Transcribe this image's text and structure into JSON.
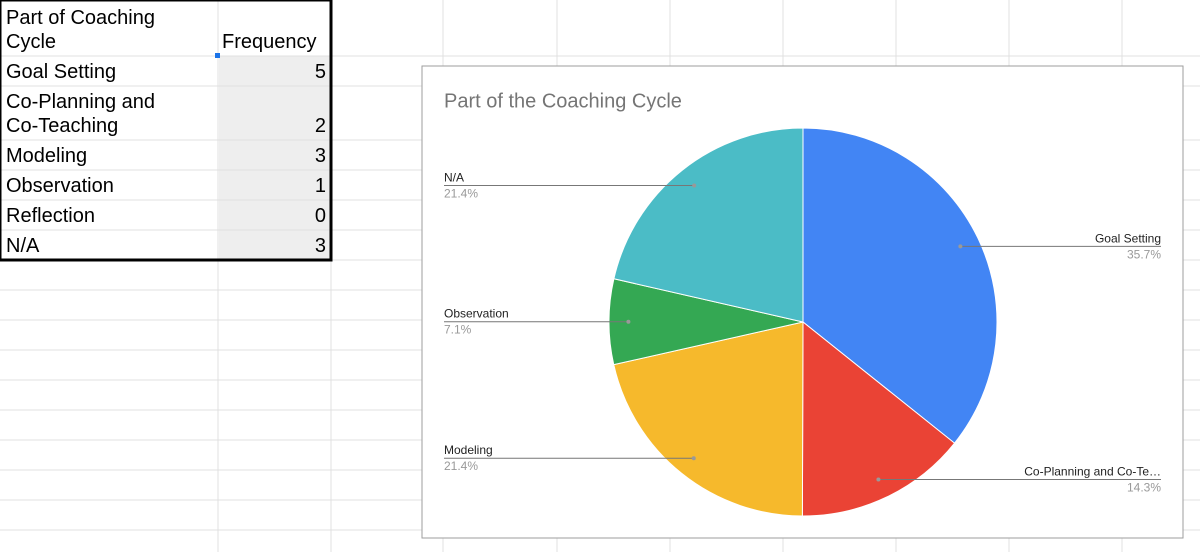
{
  "table": {
    "header": [
      "Part of Coaching Cycle",
      "Frequency"
    ],
    "rows": [
      [
        "Goal Setting",
        5
      ],
      [
        "Co-Planning and Co-Teaching",
        2
      ],
      [
        "Modeling",
        3
      ],
      [
        "Observation",
        1
      ],
      [
        "Reflection",
        0
      ],
      [
        "N/A",
        3
      ]
    ]
  },
  "chart_data": {
    "type": "pie",
    "title": "Part of the Coaching Cycle",
    "categories": [
      "Goal Setting",
      "Co-Planning and Co-Te…",
      "Modeling",
      "Observation",
      "N/A"
    ],
    "values": [
      35.7,
      14.3,
      21.4,
      7.1,
      21.4
    ],
    "value_labels": [
      "35.7%",
      "14.3%",
      "21.4%",
      "7.1%",
      "21.4%"
    ],
    "colors": [
      "#4285f4",
      "#ea4335",
      "#f6b92c",
      "#34a853",
      "#4bbcc6"
    ]
  }
}
